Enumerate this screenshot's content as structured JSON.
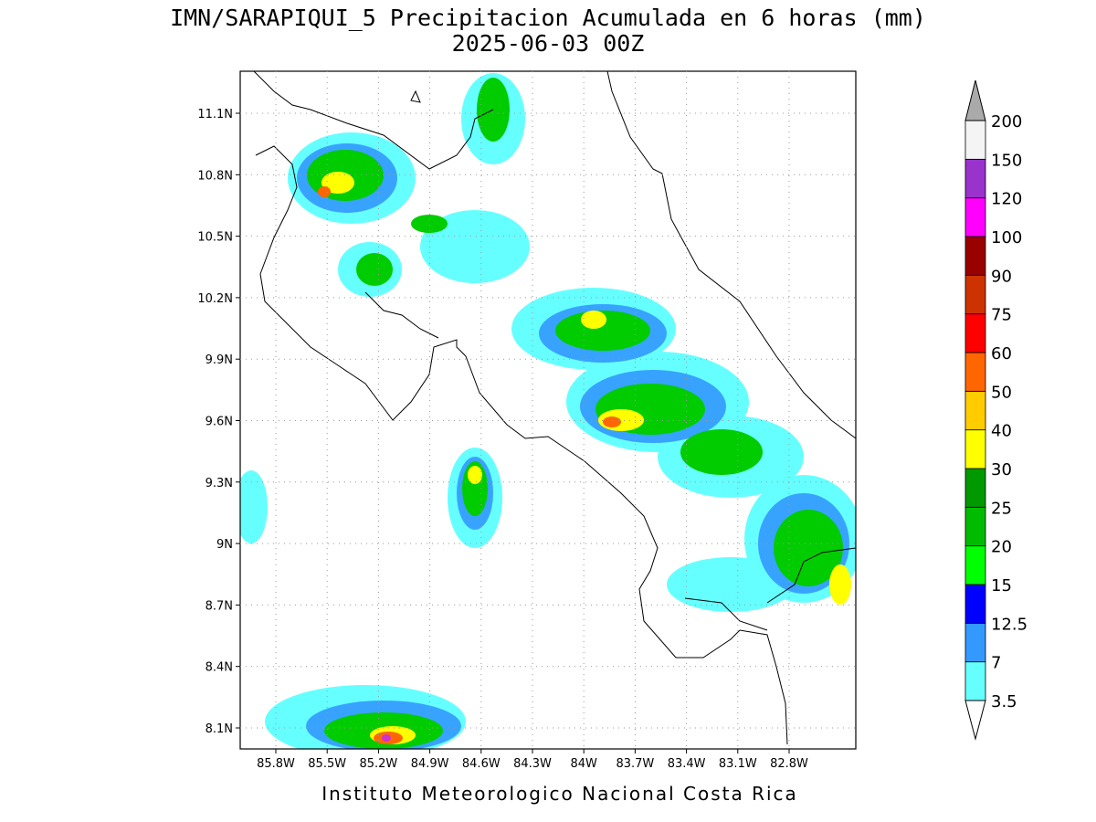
{
  "header": {
    "title": "IMN/SARAPIQUI_5 Precipitacion Acumulada en 6 horas (mm)",
    "subtitle": "2025-06-03 00Z"
  },
  "map": {
    "lat_labels": [
      "11.1N",
      "10.8N",
      "10.5N",
      "10.2N",
      "9.9N",
      "9.6N",
      "9.3N",
      "9N",
      "8.7N",
      "8.4N",
      "8.1N"
    ],
    "lon_labels": [
      "85.8W",
      "85.5W",
      "85.2W",
      "84.9W",
      "84.6W",
      "84.3W",
      "84W",
      "83.7W",
      "83.4W",
      "83.1W",
      "82.8W"
    ]
  },
  "colorbar": {
    "levels": [
      3.5,
      7,
      12.5,
      15,
      20,
      25,
      30,
      40,
      50,
      60,
      75,
      90,
      100,
      120,
      150,
      200
    ],
    "colors": [
      "#ffffff",
      "#66ffff",
      "#3399ff",
      "#0000ff",
      "#00ff00",
      "#00bb00",
      "#009900",
      "#ffff00",
      "#ffcc00",
      "#ff6600",
      "#ff0000",
      "#cc3300",
      "#990000",
      "#ff00ff",
      "#9933cc",
      "#f4f4f4",
      "#aaaaaa"
    ]
  },
  "footer": "Instituto Meteorologico Nacional Costa Rica"
}
